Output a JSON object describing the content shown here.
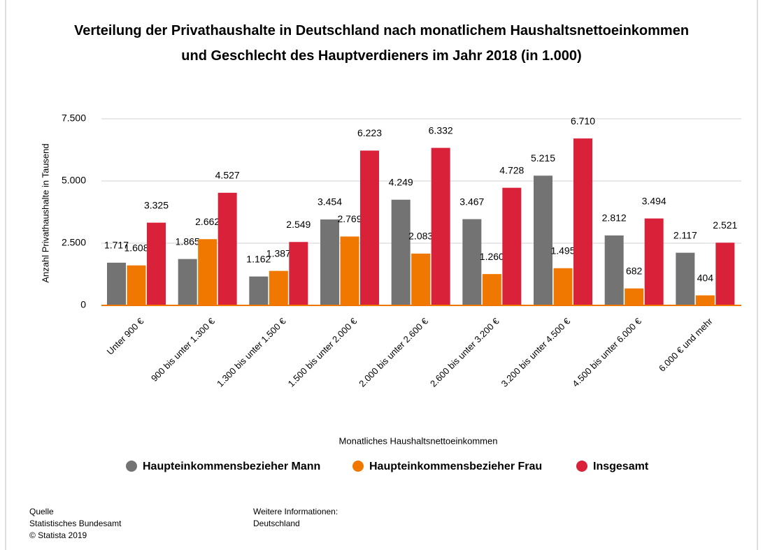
{
  "chart_data": {
    "type": "bar",
    "title": "Verteilung der Privathaushalte in Deutschland nach monatlichem Haushaltsnettoeinkommen und Geschlecht des Hauptverdieners im Jahr 2018 (in 1.000)",
    "x_label": "Monatliches Haushaltsnettoeinkommen",
    "y_label": "Anzahl Privathaushalte in Tausend",
    "categories": [
      "Unter 900 €",
      "900 bis unter 1.300 €",
      "1.300 bis unter 1.500 €",
      "1.500 bis unter 2.000 €",
      "2.000 bis unter 2.600 €",
      "2.600 bis unter 3.200 €",
      "3.200 bis unter 4.500 €",
      "4.500 bis unter 6.000 €",
      "6.000 € und mehr"
    ],
    "series": [
      {
        "name": "Haupteinkommensbezieher Mann",
        "color": "#737373",
        "values": [
          1717,
          1865,
          1162,
          3454,
          4249,
          3467,
          5215,
          2812,
          2117
        ],
        "value_labels": [
          "1.717",
          "1.865",
          "1.162",
          "3.454",
          "4.249",
          "3.467",
          "5.215",
          "2.812",
          "2.117"
        ]
      },
      {
        "name": "Haupteinkommensbezieher Frau",
        "color": "#f07800",
        "values": [
          1608,
          2662,
          1387,
          2769,
          2083,
          1260,
          1495,
          682,
          404
        ],
        "value_labels": [
          "1.608",
          "2.662",
          "1.387",
          "2.769",
          "2.083",
          "1.260",
          "1.495",
          "682",
          "404"
        ]
      },
      {
        "name": "Insgesamt",
        "color": "#d9213a",
        "values": [
          3325,
          4527,
          2549,
          6223,
          6332,
          4728,
          6710,
          3494,
          2521
        ],
        "value_labels": [
          "3.325",
          "4.527",
          "2.549",
          "6.223",
          "6.332",
          "4.728",
          "6.710",
          "3.494",
          "2.521"
        ]
      }
    ],
    "ylim": [
      0,
      7500
    ],
    "yticks": [
      0,
      {
        "value": 2500,
        "label": "2.500"
      },
      {
        "value": 5000,
        "label": "5.000"
      },
      {
        "value": 7500,
        "label": "7.500"
      }
    ],
    "grid": true,
    "legend": "bottom",
    "source_heading": "Quelle",
    "source": "Statistisches Bundesamt",
    "copyright": "© Statista 2019",
    "info_heading": "Weitere Informationen:",
    "info": "Deutschland"
  }
}
